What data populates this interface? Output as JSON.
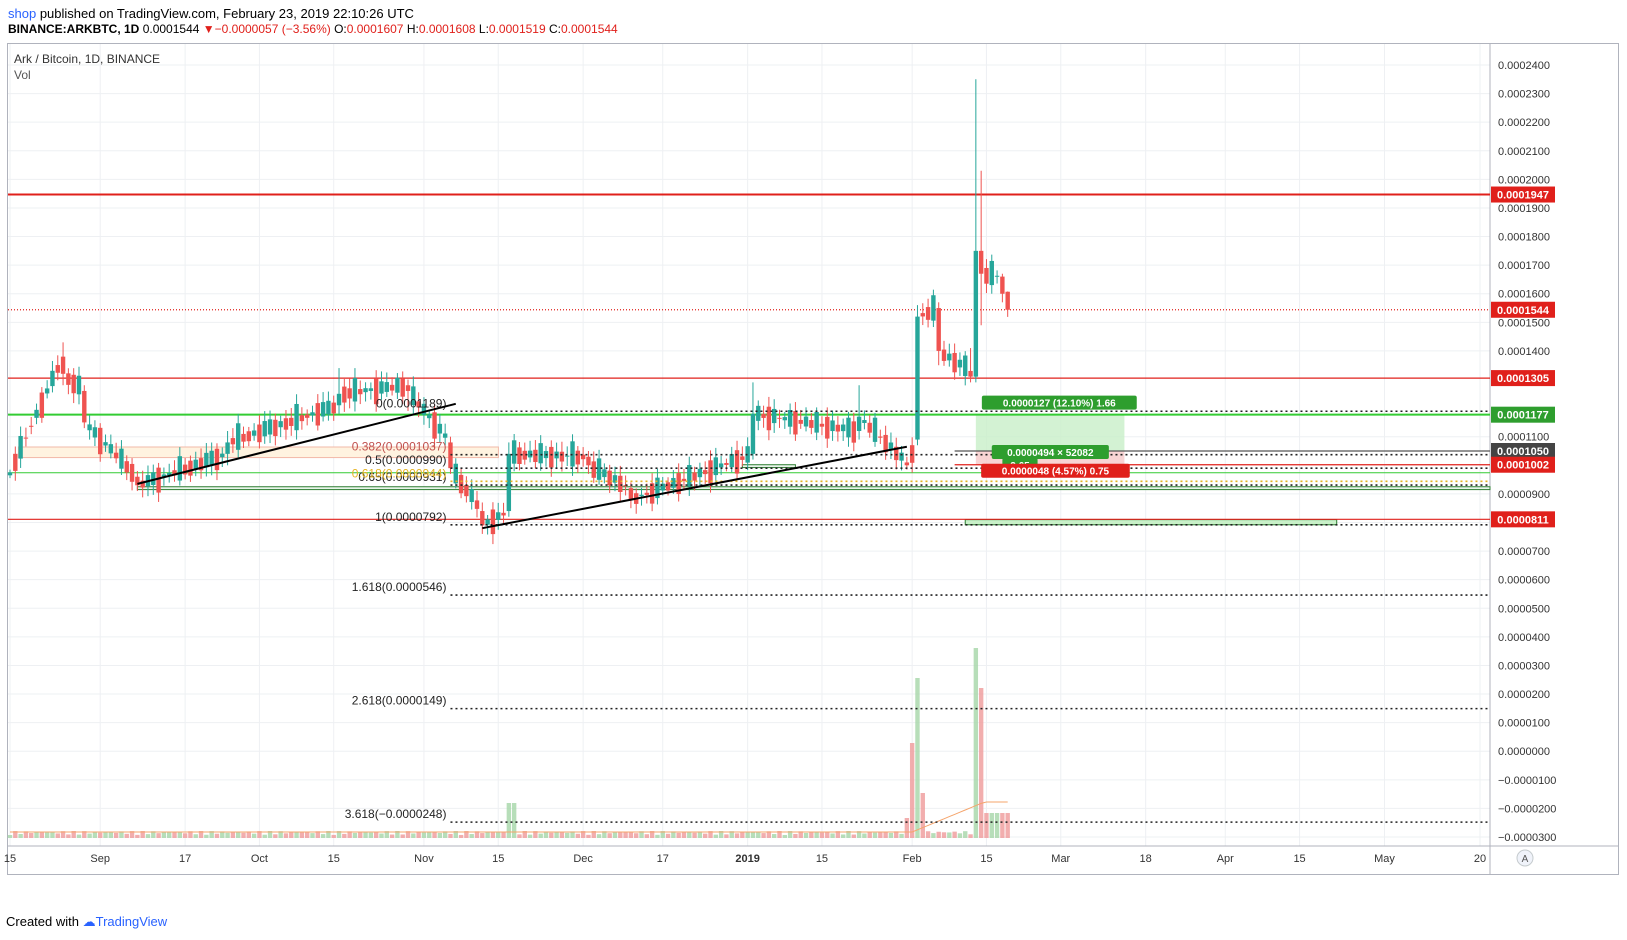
{
  "header": {
    "publisher": "shop",
    "published_text": "published on TradingView.com, February 23, 2019 22:10:26 UTC",
    "symbol": "BINANCE:ARKBTC, 1D",
    "last": "0.0001544",
    "change": "▼−0.0000057 (−3.56%)",
    "o_label": "O:",
    "o": "0.0001607",
    "h_label": "H:",
    "h": "0.0001608",
    "l_label": "L:",
    "l": "0.0001519",
    "c_label": "C:",
    "c": "0.0001544"
  },
  "legend": {
    "title": "Ark / Bitcoin, 1D, BINANCE",
    "vol": "Vol"
  },
  "footer": {
    "created": "Created with",
    "brand": "TradingView"
  },
  "colors": {
    "up": "#26a69a",
    "down": "#ef5350",
    "red_line": "#e0201b",
    "green_line": "#33cc33",
    "fib": "#222222",
    "vol_up": "#a5d6a7",
    "vol_down": "#ef9a9a",
    "vol_ma": "#f5a46b",
    "axis_text": "#333333"
  },
  "chart_data": {
    "type": "candlestick",
    "y_axis": {
      "ticks": [
        "0.0002400",
        "0.0002300",
        "0.0002200",
        "0.0002100",
        "0.0002000",
        "0.0001900",
        "0.0001800",
        "0.0001700",
        "0.0001600",
        "0.0001500",
        "0.0001400",
        "0.0001100",
        "0.0000900",
        "0.0000800",
        "0.0000700",
        "0.0000600",
        "0.0000500",
        "0.0000400",
        "0.0000300",
        "0.0000200",
        "0.0000100",
        "0.0000000",
        "−0.0000100",
        "−0.0000200",
        "−0.0000300"
      ],
      "tick_values": [
        0.00024,
        0.00023,
        0.00022,
        0.00021,
        0.0002,
        0.00019,
        0.00018,
        0.00017,
        0.00016,
        0.00015,
        0.00014,
        0.00011,
        9e-05,
        8e-05,
        7e-05,
        6e-05,
        5e-05,
        4e-05,
        3e-05,
        2e-05,
        1e-05,
        0.0,
        -1e-05,
        -2e-05,
        -3e-05
      ]
    },
    "x_axis": {
      "ticks": [
        "15",
        "Sep",
        "17",
        "Oct",
        "15",
        "Nov",
        "15",
        "Dec",
        "17",
        "2019",
        "15",
        "Feb",
        "15",
        "Mar",
        "18",
        "Apr",
        "15",
        "May",
        "20"
      ],
      "tick_days": [
        0,
        17,
        33,
        47,
        61,
        78,
        92,
        108,
        123,
        139,
        153,
        170,
        184,
        198,
        214,
        229,
        243,
        259,
        277
      ]
    },
    "horizontal_levels": [
      {
        "label": "0.0001947",
        "value": 0.0001947,
        "color": "#e0201b",
        "style": "solid"
      },
      {
        "label": "0.0001544",
        "value": 0.0001544,
        "color": "#e0201b",
        "style": "dotted"
      },
      {
        "label": "0.0001305",
        "value": 0.0001305,
        "color": "#e0201b",
        "style": "solid"
      },
      {
        "label": "0.0001177",
        "value": 0.0001177,
        "color": "#33cc33",
        "style": "solid"
      },
      {
        "label": "0.0001050",
        "value": 0.000105,
        "color": "#555555",
        "style": "solid"
      },
      {
        "label": "0.0001002",
        "value": 0.0001002,
        "color": "#e0201b",
        "style": "solid"
      },
      {
        "label": "0.0000811",
        "value": 8.11e-05,
        "color": "#e0201b",
        "style": "solid"
      }
    ],
    "fib_levels": [
      {
        "label": "0(0.0001189)",
        "value": 0.0001189
      },
      {
        "label": "0.382(0.0001037)",
        "value": 0.0001037
      },
      {
        "label": "0.5(0.0000990)",
        "value": 9.9e-05
      },
      {
        "label": "0.65(0.0000931)",
        "value": 9.31e-05
      },
      {
        "label": "0.618(0.0000944)",
        "value": 9.44e-05
      },
      {
        "label": "1(0.0000792)",
        "value": 7.92e-05
      },
      {
        "label": "1.618(0.0000546)",
        "value": 5.46e-05
      },
      {
        "label": "2.618(0.0000149)",
        "value": 1.49e-05
      },
      {
        "label": "3.618(−0.0000248)",
        "value": -2.48e-05
      }
    ],
    "position_tool": {
      "target_label": "0.0000127 (12.10%) 1.66",
      "entry_label": "0.0000494 × 52082",
      "ratio_label": "2.65",
      "stop_label": "0.0000048 (4.57%) 0.75"
    },
    "key_candles": [
      {
        "day": 0,
        "open": 9.65e-05,
        "high": 9.85e-05,
        "low": 9.55e-05,
        "close": 9.75e-05
      },
      {
        "day": 10,
        "open": 0.000138,
        "high": 0.000143,
        "low": 0.000128,
        "close": 0.000132
      },
      {
        "day": 14,
        "open": 0.000126,
        "high": 0.000128,
        "low": 0.000113,
        "close": 0.000115
      },
      {
        "day": 24,
        "open": 9.6e-05,
        "high": 9.8e-05,
        "low": 9.1e-05,
        "close": 9.3e-05
      },
      {
        "day": 41,
        "open": 0.000104,
        "high": 0.000112,
        "low": 0.0001,
        "close": 0.000108
      },
      {
        "day": 62,
        "open": 0.000121,
        "high": 0.000134,
        "low": 0.000118,
        "close": 0.000125
      },
      {
        "day": 75,
        "open": 0.000128,
        "high": 0.00013,
        "low": 0.000119,
        "close": 0.000126
      },
      {
        "day": 83,
        "open": 0.000108,
        "high": 0.00011,
        "low": 9.7e-05,
        "close": 9.9e-05
      },
      {
        "day": 89,
        "open": 8.4e-05,
        "high": 8.7e-05,
        "low": 7.6e-05,
        "close": 7.9e-05
      },
      {
        "day": 94,
        "open": 8.4e-05,
        "high": 0.000108,
        "low": 8.2e-05,
        "close": 0.000104
      },
      {
        "day": 109,
        "open": 0.000103,
        "high": 0.000105,
        "low": 9.7e-05,
        "close": 0.0001
      },
      {
        "day": 117,
        "open": 9.2e-05,
        "high": 9.4e-05,
        "low": 8.5e-05,
        "close": 8.8e-05
      },
      {
        "day": 140,
        "open": 0.000104,
        "high": 0.000129,
        "low": 0.000102,
        "close": 0.000118
      },
      {
        "day": 160,
        "open": 0.000112,
        "high": 0.000128,
        "low": 0.000109,
        "close": 0.000117
      },
      {
        "day": 169,
        "open": 0.000101,
        "high": 0.000103,
        "low": 9.85e-05,
        "close": 0.0001
      },
      {
        "day": 171,
        "open": 0.000109,
        "high": 0.000156,
        "low": 0.000107,
        "close": 0.000152
      },
      {
        "day": 175,
        "open": 0.000155,
        "high": 0.000157,
        "low": 0.000135,
        "close": 0.00014
      },
      {
        "day": 181,
        "open": 0.000133,
        "high": 0.000141,
        "low": 0.000129,
        "close": 0.000131
      },
      {
        "day": 182,
        "open": 0.000131,
        "high": 0.000235,
        "low": 0.000129,
        "close": 0.000175
      },
      {
        "day": 183,
        "open": 0.000175,
        "high": 0.000203,
        "low": 0.000149,
        "close": 0.000167
      },
      {
        "day": 187,
        "open": 0.000166,
        "high": 0.000167,
        "low": 0.000157,
        "close": 0.00016
      },
      {
        "day": 188,
        "open": 0.0001607,
        "high": 0.0001608,
        "low": 0.0001519,
        "close": 0.0001544
      }
    ],
    "grid": true
  }
}
